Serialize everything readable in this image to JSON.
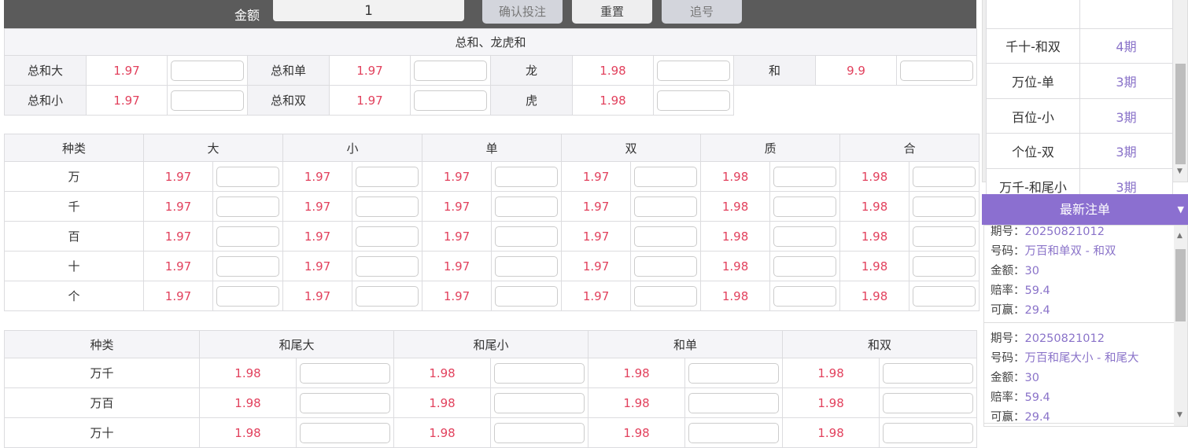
{
  "toolbar": {
    "amount_label": "金额",
    "amount_value": "1",
    "confirm": "确认投注",
    "reset": "重置",
    "chase": "追号"
  },
  "sum_section": {
    "title": "总和、龙虎和",
    "rows": [
      [
        {
          "label": "总和大",
          "odds": "1.97"
        },
        {
          "label": "总和单",
          "odds": "1.97"
        },
        {
          "label": "龙",
          "odds": "1.98"
        },
        {
          "label": "和",
          "odds": "9.9"
        }
      ],
      [
        {
          "label": "总和小",
          "odds": "1.97"
        },
        {
          "label": "总和双",
          "odds": "1.97"
        },
        {
          "label": "虎",
          "odds": "1.98"
        }
      ]
    ]
  },
  "position_table": {
    "headers": [
      "种类",
      "大",
      "小",
      "单",
      "双",
      "质",
      "合"
    ],
    "rows": [
      {
        "label": "万",
        "odds": [
          "1.97",
          "1.97",
          "1.97",
          "1.97",
          "1.98",
          "1.98"
        ]
      },
      {
        "label": "千",
        "odds": [
          "1.97",
          "1.97",
          "1.97",
          "1.97",
          "1.98",
          "1.98"
        ]
      },
      {
        "label": "百",
        "odds": [
          "1.97",
          "1.97",
          "1.97",
          "1.97",
          "1.98",
          "1.98"
        ]
      },
      {
        "label": "十",
        "odds": [
          "1.97",
          "1.97",
          "1.97",
          "1.97",
          "1.98",
          "1.98"
        ]
      },
      {
        "label": "个",
        "odds": [
          "1.97",
          "1.97",
          "1.97",
          "1.97",
          "1.98",
          "1.98"
        ]
      }
    ]
  },
  "pair_table": {
    "headers": [
      "种类",
      "和尾大",
      "和尾小",
      "和单",
      "和双"
    ],
    "rows": [
      {
        "label": "万千",
        "odds": [
          "1.98",
          "1.98",
          "1.98",
          "1.98"
        ]
      },
      {
        "label": "万百",
        "odds": [
          "1.98",
          "1.98",
          "1.98",
          "1.98"
        ]
      },
      {
        "label": "万十",
        "odds": [
          "1.98",
          "1.98",
          "1.98",
          "1.98"
        ]
      }
    ]
  },
  "streaks": [
    {
      "name": "",
      "periods": ""
    },
    {
      "name": "千十-和双",
      "periods": "4期"
    },
    {
      "name": "万位-单",
      "periods": "3期"
    },
    {
      "name": "百位-小",
      "periods": "3期"
    },
    {
      "name": "个位-双",
      "periods": "3期"
    },
    {
      "name": "万千-和尾小",
      "periods": "3期"
    }
  ],
  "recent": {
    "title": "最新注单",
    "labels": {
      "issue": "期号：",
      "code": "号码：",
      "amount": "金额：",
      "odds": "赔率：",
      "win": "可赢："
    },
    "entries": [
      {
        "issue": "20250821012",
        "code": "万百和单双 - 和双",
        "amount": "30",
        "odds": "59.4",
        "win": "29.4"
      },
      {
        "issue": "20250821012",
        "code": "万百和尾大小 - 和尾大",
        "amount": "30",
        "odds": "59.4",
        "win": "29.4"
      }
    ]
  },
  "colors": {
    "accent": "#8b6fd0",
    "odds": "#e2415d",
    "toolbar": "#5b5b5b"
  }
}
